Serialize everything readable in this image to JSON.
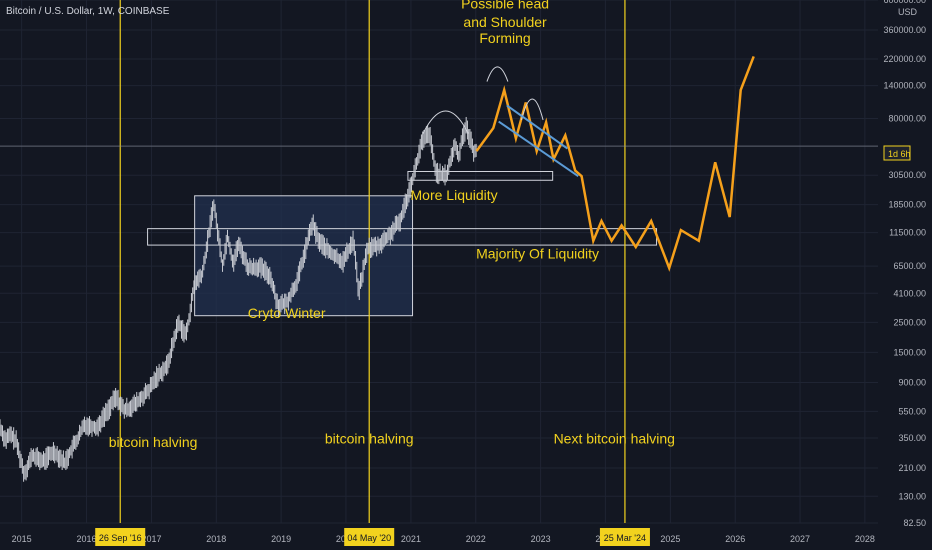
{
  "header": {
    "symbol_label": "Bitcoin / U.S. Dollar, 1W, COINBASE"
  },
  "price_axis": {
    "currency": "USD",
    "current_tag": "1d 6h"
  },
  "colors": {
    "background": "#131722",
    "candles": "#c9ccd3",
    "projection": "#f5a01b",
    "halving_line": "#f2d21e",
    "annotation_text": "#f2d21e",
    "box_fill": "#22304f",
    "box_border": "#d1d4dc",
    "channel_line": "#5b9bd5",
    "axis_text": "#b2b5be",
    "date_tag_bg": "#f2d21e",
    "date_tag_text": "#131722"
  },
  "chart_data": {
    "type": "line",
    "title": "",
    "scale": "log",
    "ylim": [
      82.5,
      600000
    ],
    "xlim": [
      "2014-09-01",
      "2028-03-15"
    ],
    "x_ticks": [
      "2015",
      "2016",
      "2017",
      "2018",
      "2019",
      "2020",
      "2021",
      "2022",
      "2023",
      "2024",
      "2025",
      "2026",
      "2027",
      "2028"
    ],
    "y_ticks": [
      82.5,
      130,
      210,
      350,
      550,
      900,
      1500,
      2500,
      4100,
      6500,
      11500,
      18500,
      30500,
      50000,
      80000,
      140000,
      220000,
      360000,
      600000
    ],
    "y_tick_labels": [
      "82.50",
      "130.00",
      "210.00",
      "350.00",
      "550.00",
      "900.00",
      "1500.00",
      "2500.00",
      "4100.00",
      "6500.00",
      "11500.00",
      "18500.00",
      "30500.00",
      "",
      "80000.00",
      "140000.00",
      "220000.00",
      "360000.00",
      "600000.00"
    ],
    "series": [
      {
        "kind": "price_history",
        "x": [
          "2014-09-01",
          "2014-10-01",
          "2014-11-01",
          "2014-12-01",
          "2015-01-15",
          "2015-03-01",
          "2015-05-01",
          "2015-07-01",
          "2015-09-01",
          "2015-10-15",
          "2015-11-15",
          "2015-12-20",
          "2016-03-01",
          "2016-06-15",
          "2016-08-01",
          "2016-10-01",
          "2016-12-15",
          "2017-02-01",
          "2017-04-01",
          "2017-06-01",
          "2017-07-15",
          "2017-09-01",
          "2017-10-15",
          "2017-12-17",
          "2018-02-06",
          "2018-03-05",
          "2018-04-06",
          "2018-05-05",
          "2018-07-01",
          "2018-09-01",
          "2018-11-01",
          "2018-12-15",
          "2019-02-01",
          "2019-04-01",
          "2019-06-26",
          "2019-08-01",
          "2019-10-01",
          "2019-12-15",
          "2020-02-13",
          "2020-03-13",
          "2020-05-01",
          "2020-07-01",
          "2020-09-01",
          "2020-11-01",
          "2020-12-20",
          "2021-01-20",
          "2021-03-01",
          "2021-04-14",
          "2021-05-19",
          "2021-06-22",
          "2021-07-20",
          "2021-09-07",
          "2021-09-25",
          "2021-10-20",
          "2021-11-10",
          "2021-12-01",
          "2021-12-20",
          "2022-01-05"
        ],
        "y": [
          420,
          340,
          370,
          330,
          190,
          260,
          235,
          280,
          230,
          300,
          350,
          440,
          420,
          700,
          560,
          620,
          780,
          1000,
          1200,
          2500,
          2000,
          4800,
          5700,
          19000,
          6500,
          11000,
          6800,
          9500,
          6300,
          6400,
          5500,
          3300,
          3500,
          5000,
          13500,
          10000,
          8200,
          7000,
          10300,
          4100,
          8800,
          9200,
          11000,
          14000,
          23000,
          32000,
          52000,
          63000,
          33000,
          30000,
          30500,
          52000,
          41000,
          61000,
          69000,
          56000,
          46000,
          47000
        ]
      },
      {
        "kind": "projection",
        "x": [
          "2022-01-05",
          "2022-04-10",
          "2022-06-10",
          "2022-08-15",
          "2022-10-10",
          "2022-12-10",
          "2023-02-01",
          "2023-03-15",
          "2023-05-20",
          "2023-07-15",
          "2023-08-20",
          "2023-10-25",
          "2023-12-10",
          "2024-02-05",
          "2024-04-01",
          "2024-06-20",
          "2024-09-15",
          "2024-12-25",
          "2025-03-01",
          "2025-06-10",
          "2025-09-10",
          "2025-12-01",
          "2026-02-01",
          "2026-04-15"
        ],
        "y": [
          46000,
          68000,
          130000,
          57000,
          105000,
          46000,
          75000,
          40000,
          60000,
          33000,
          30000,
          10000,
          14000,
          10000,
          13000,
          9000,
          14000,
          6300,
          12000,
          10000,
          38000,
          15000,
          130000,
          230000
        ]
      }
    ],
    "halvings": [
      {
        "x": "2016-07-09",
        "label": "26 Sep '16"
      },
      {
        "x": "2020-05-11",
        "label": "04 May '20"
      },
      {
        "x": "2024-04-20",
        "label": "25 Mar '24"
      }
    ],
    "current_price_line": 50000,
    "annotations": [
      {
        "text": "bitcoin halving",
        "x": "2017-01-10",
        "y": 300
      },
      {
        "text": "bitcoin halving",
        "x": "2020-05-11",
        "y": 320
      },
      {
        "text": "Next bitcoin halving",
        "x": "2024-02-20",
        "y": 320
      },
      {
        "text": "Cryto Winter",
        "x": "2019-02-01",
        "y": 2700
      },
      {
        "text": "More Liquidity",
        "x": "2021-09-01",
        "y": 20000
      },
      {
        "text": "Majority Of Liquidity",
        "x": "2022-12-15",
        "y": 7400
      },
      {
        "text": "Possible head",
        "x": "2022-06-15",
        "y": 520000
      },
      {
        "text": "and Shoulder",
        "x": "2022-06-15",
        "y": 380000
      },
      {
        "text": "Forming",
        "x": "2022-06-15",
        "y": 290000
      }
    ],
    "zones": [
      {
        "name": "crypto_winter_box",
        "x0": "2017-09-01",
        "x1": "2021-01-10",
        "y0": 2800,
        "y1": 21500
      },
      {
        "name": "liquidity_band",
        "x0": "2016-12-10",
        "x1": "2024-10-15",
        "y0": 9300,
        "y1": 12300
      },
      {
        "name": "more_liquidity_box",
        "x0": "2020-12-15",
        "x1": "2023-03-10",
        "y0": 28000,
        "y1": 32500
      }
    ]
  }
}
